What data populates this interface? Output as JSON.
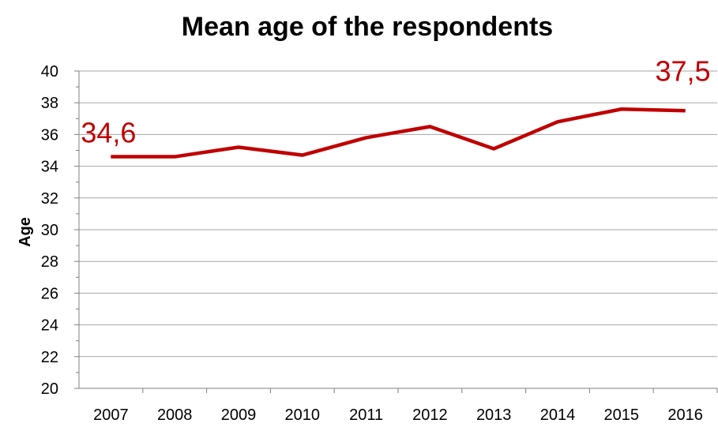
{
  "chart_data": {
    "type": "line",
    "title": "Mean age of the respondents",
    "xlabel": "",
    "ylabel": "Age",
    "categories": [
      "2007",
      "2008",
      "2009",
      "2010",
      "2011",
      "2012",
      "2013",
      "2014",
      "2015",
      "2016"
    ],
    "series": [
      {
        "values": [
          34.6,
          34.6,
          35.2,
          34.7,
          35.8,
          36.5,
          35.1,
          36.8,
          37.6,
          37.5
        ],
        "color": "#c00000"
      }
    ],
    "ylim": [
      20,
      40
    ],
    "yticks": [
      "20",
      "22",
      "24",
      "26",
      "28",
      "30",
      "32",
      "34",
      "36",
      "38",
      "40"
    ],
    "grid": true,
    "legend": "none",
    "annotations": [
      {
        "text": "34,6",
        "category": "2007",
        "color": "#c00000"
      },
      {
        "text": "37,5",
        "category": "2016",
        "color": "#c00000"
      }
    ]
  }
}
